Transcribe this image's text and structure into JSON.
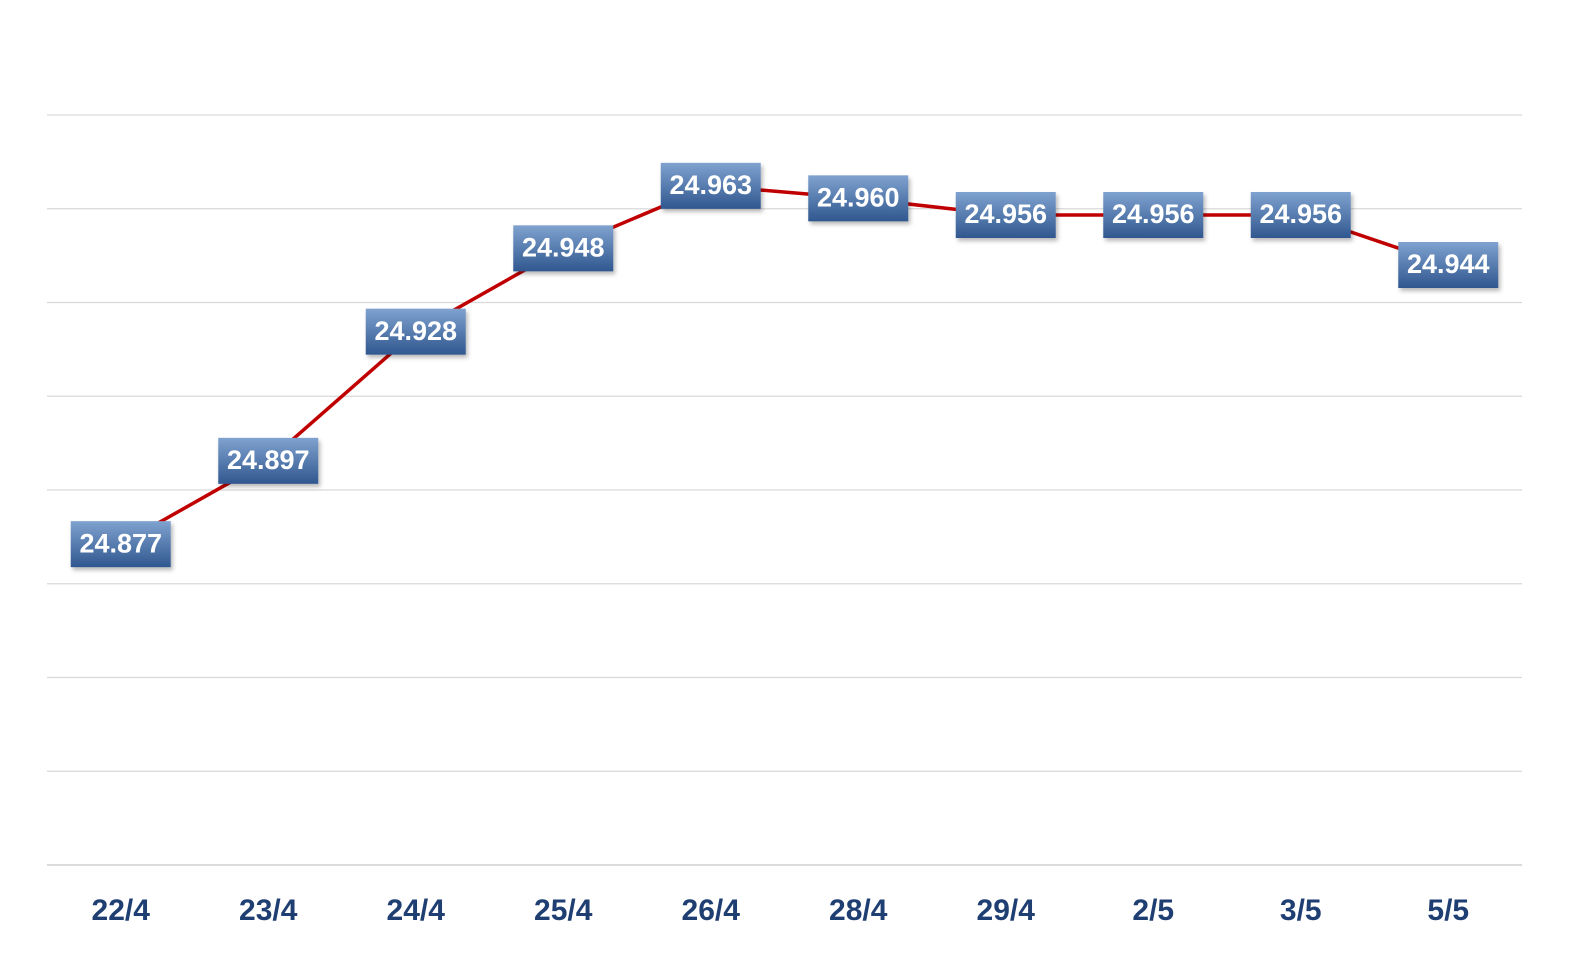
{
  "chart_data": {
    "type": "line",
    "categories": [
      "22/4",
      "23/4",
      "24/4",
      "25/4",
      "26/4",
      "28/4",
      "29/4",
      "2/5",
      "3/5",
      "5/5"
    ],
    "series": [
      {
        "values": [
          24.877,
          24.897,
          24.928,
          24.948,
          24.963,
          24.96,
          24.956,
          24.956,
          24.956,
          24.944
        ],
        "data_labels": [
          "24.877",
          "24.897",
          "24.928",
          "24.948",
          "24.963",
          "24.960",
          "24.956",
          "24.956",
          "24.956",
          "24.944"
        ]
      }
    ],
    "title": "",
    "xlabel": "",
    "ylabel": "",
    "ylim": [
      24.8,
      24.98
    ],
    "grid": true,
    "legend": "none",
    "colors": {
      "line": "#c00000",
      "label_fill_top": "#7fa2cf",
      "label_fill_bottom": "#30578f",
      "tick_label": "#1f3f73",
      "grid": "#d9d9d9"
    }
  }
}
